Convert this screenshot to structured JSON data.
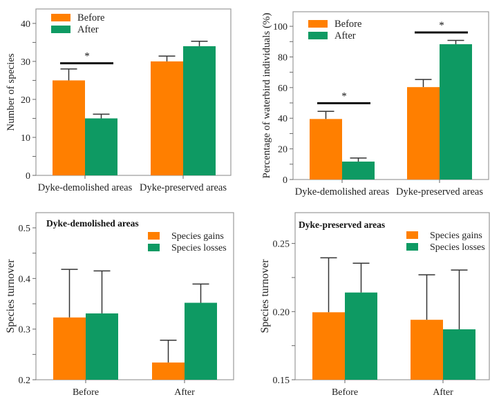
{
  "colors": {
    "before": "#FF7F00",
    "after": "#0E9A63"
  },
  "chart_data": [
    {
      "type": "bar",
      "title": "",
      "ylabel": "Number of species",
      "ylim": [
        0,
        43.8
      ],
      "yticks": [
        0,
        10,
        20,
        30,
        40
      ],
      "categories": [
        "Dyke-demolished areas",
        "Dyke-preserved areas"
      ],
      "series": [
        {
          "name": "Before",
          "values": [
            25,
            30
          ],
          "err_upper": [
            28,
            31.4
          ]
        },
        {
          "name": "After",
          "values": [
            15,
            34
          ],
          "err_upper": [
            16.1,
            35.3
          ]
        }
      ],
      "legend": "top-left",
      "significance": [
        {
          "category": 0,
          "y": 29.5,
          "label": "*"
        }
      ]
    },
    {
      "type": "bar",
      "title": "",
      "ylabel": "Percentage of waterbird individuals (%)",
      "ylim": [
        0,
        109.5
      ],
      "yticks": [
        0,
        20,
        40,
        60,
        80,
        100
      ],
      "categories": [
        "Dyke-demolished areas",
        "Dyke-preserved areas"
      ],
      "series": [
        {
          "name": "Before",
          "values": [
            39.5,
            60.3
          ],
          "err_upper": [
            44.5,
            65.3
          ]
        },
        {
          "name": "After",
          "values": [
            11.7,
            88.3
          ],
          "err_upper": [
            14,
            90.8
          ]
        }
      ],
      "legend": "top-left",
      "significance": [
        {
          "category": 0,
          "y": 49.8,
          "label": "*"
        },
        {
          "category": 1,
          "y": 96,
          "label": "*"
        }
      ]
    },
    {
      "type": "bar",
      "title": "Dyke-demolished areas",
      "ylabel": "Species turnover",
      "ylim": [
        0.2,
        0.53
      ],
      "yticks": [
        "0.2",
        "0.3",
        "0.4",
        "0.5"
      ],
      "categories": [
        "Before",
        "After"
      ],
      "series": [
        {
          "name": "Species gains",
          "values": [
            0.323,
            0.234
          ],
          "err_upper": [
            0.418,
            0.278
          ]
        },
        {
          "name": "Species losses",
          "values": [
            0.331,
            0.352
          ],
          "err_upper": [
            0.415,
            0.389
          ]
        }
      ],
      "legend": "top-right",
      "significance": []
    },
    {
      "type": "bar",
      "title": "Dyke-preserved areas",
      "ylabel": "Species turnover",
      "ylim": [
        0.15,
        0.2726
      ],
      "yticks": [
        "0.15",
        "0.20",
        "0.25"
      ],
      "categories": [
        "Before",
        "After"
      ],
      "series": [
        {
          "name": "Species gains",
          "values": [
            0.1995,
            0.194
          ],
          "err_upper": [
            0.2395,
            0.227
          ]
        },
        {
          "name": "Species losses",
          "values": [
            0.214,
            0.187
          ],
          "err_upper": [
            0.2355,
            0.2305
          ]
        }
      ],
      "legend": "top-right",
      "significance": []
    }
  ]
}
